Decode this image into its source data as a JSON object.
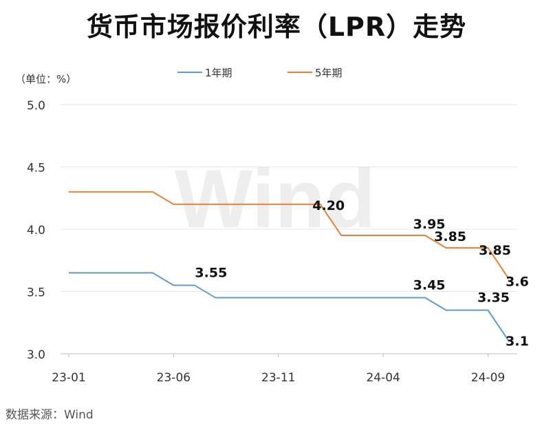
{
  "title": "货币市场报价利率（LPR）走势",
  "unit_label": "（单位：%）",
  "source": "数据来源：Wind",
  "watermark": "Wind",
  "colors": {
    "series_1y": "#5b9bd5",
    "series_5y": "#ed7d31",
    "grid": "#e6e6e6",
    "axis_text": "#333333"
  },
  "chart_data": {
    "type": "line",
    "x": [
      "23-01",
      "23-02",
      "23-03",
      "23-04",
      "23-05",
      "23-06",
      "23-07",
      "23-08",
      "23-09",
      "23-10",
      "23-11",
      "23-12",
      "24-01",
      "24-02",
      "24-03",
      "24-04",
      "24-05",
      "24-06",
      "24-07",
      "24-08",
      "24-09",
      "24-10"
    ],
    "x_tick_labels": [
      "23-01",
      "23-06",
      "23-11",
      "24-04",
      "24-09"
    ],
    "y_tick_labels": [
      "3.0",
      "3.5",
      "4.0",
      "4.5",
      "5.0"
    ],
    "ylim": [
      3.0,
      5.0
    ],
    "grid": true,
    "legend_position": "top-center",
    "series": [
      {
        "name": "1年期",
        "values": [
          3.65,
          3.65,
          3.65,
          3.65,
          3.65,
          3.55,
          3.55,
          3.45,
          3.45,
          3.45,
          3.45,
          3.45,
          3.45,
          3.45,
          3.45,
          3.45,
          3.45,
          3.45,
          3.35,
          3.35,
          3.35,
          3.1
        ],
        "labels": [
          {
            "index": 6,
            "text": "3.55"
          },
          {
            "index": 17,
            "text": "3.45"
          },
          {
            "index": 20,
            "text": "3.35"
          },
          {
            "index": 21,
            "text": "3.1"
          }
        ]
      },
      {
        "name": "5年期",
        "values": [
          4.3,
          4.3,
          4.3,
          4.3,
          4.3,
          4.2,
          4.2,
          4.2,
          4.2,
          4.2,
          4.2,
          4.2,
          4.2,
          3.95,
          3.95,
          3.95,
          3.95,
          3.95,
          3.85,
          3.85,
          3.85,
          3.6
        ],
        "labels": [
          {
            "index": 12,
            "text": "4.20"
          },
          {
            "index": 17,
            "text": "3.95"
          },
          {
            "index": 18,
            "text": "3.85"
          },
          {
            "index": 20,
            "text": "3.85"
          },
          {
            "index": 21,
            "text": "3.6"
          }
        ]
      }
    ]
  }
}
